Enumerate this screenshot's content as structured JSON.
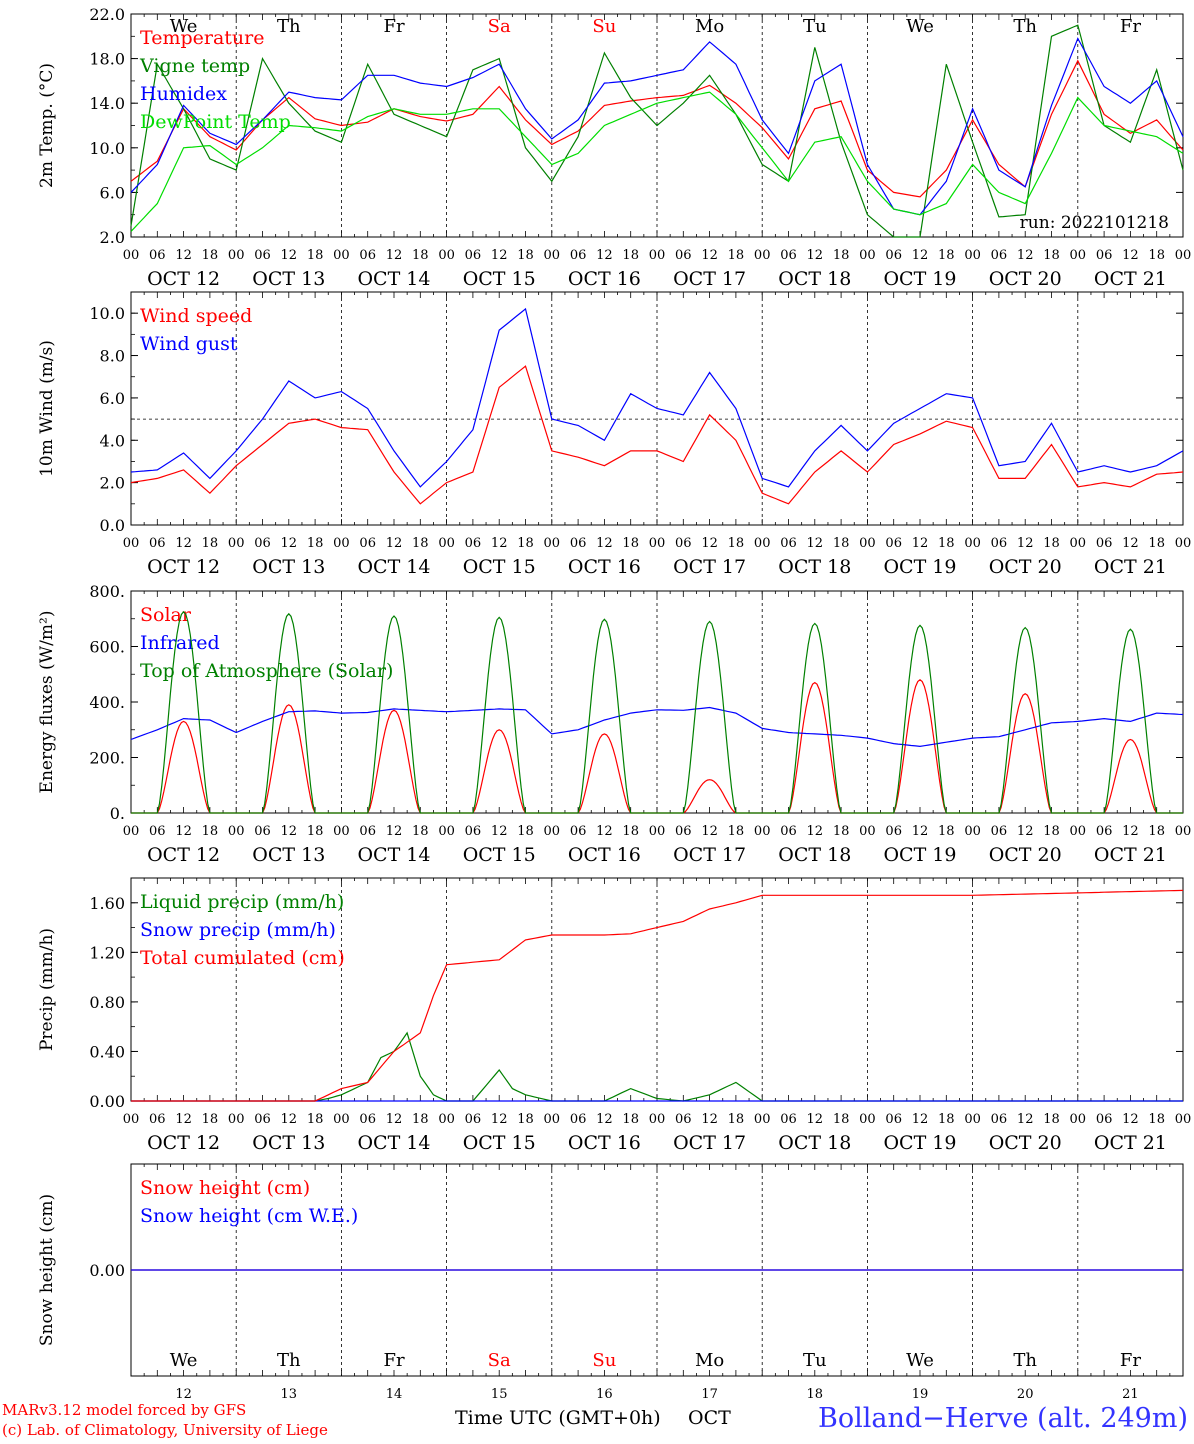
{
  "days": {
    "weekday_labels": [
      "We",
      "Th",
      "Fr",
      "Sa",
      "Su",
      "Mo",
      "Tu",
      "We",
      "Th",
      "Fr"
    ],
    "weekday_colors": [
      "#000000",
      "#000000",
      "#000000",
      "#ff0000",
      "#ff0000",
      "#000000",
      "#000000",
      "#000000",
      "#000000",
      "#000000"
    ],
    "date_labels": [
      "OCT 12",
      "OCT 13",
      "OCT 14",
      "OCT 15",
      "OCT 16",
      "OCT 17",
      "OCT 18",
      "OCT 19",
      "OCT 20",
      "OCT 21"
    ],
    "day_numbers": [
      "12",
      "13",
      "14",
      "15",
      "16",
      "17",
      "18",
      "19",
      "20",
      "21"
    ],
    "hour_ticks": [
      "00",
      "06",
      "12",
      "18"
    ],
    "final_hour_tick": "00"
  },
  "chart_data": [
    {
      "type": "line",
      "ylabel": "2m Temp. (°C)",
      "ylim": [
        2.0,
        22.0
      ],
      "yticks": [
        "2.0",
        "6.0",
        "10.0",
        "14.0",
        "18.0",
        "22.0"
      ],
      "ytick_values": [
        2,
        6,
        10,
        14,
        18,
        22
      ],
      "annotation": "run: 2022101218",
      "legend_placement": "top-left",
      "series": [
        {
          "name": "Temperature",
          "color": "#ff0000",
          "x_hours": [
            0,
            6,
            12,
            18,
            24,
            30,
            36,
            42,
            48,
            54,
            60,
            66,
            72,
            78,
            84,
            90,
            96,
            102,
            108,
            114,
            120,
            126,
            132,
            138,
            144,
            150,
            156,
            162,
            168,
            174,
            180,
            186,
            192,
            198,
            204,
            210,
            216,
            222,
            228,
            234,
            240
          ],
          "values": [
            7.0,
            8.8,
            13.5,
            11.0,
            9.8,
            12.5,
            14.5,
            12.6,
            12.0,
            12.3,
            13.5,
            12.8,
            12.4,
            13.0,
            15.5,
            12.5,
            10.3,
            11.5,
            13.8,
            14.2,
            14.5,
            14.7,
            15.6,
            14.0,
            11.8,
            9.0,
            13.5,
            14.2,
            8.0,
            6.0,
            5.6,
            8.0,
            12.5,
            8.5,
            6.5,
            13.0,
            17.8,
            13.0,
            11.3,
            12.5,
            9.8
          ]
        },
        {
          "name": "Vigne temp",
          "color": "#008000",
          "x_hours": [
            0,
            6,
            12,
            18,
            24,
            30,
            36,
            42,
            48,
            54,
            60,
            66,
            72,
            78,
            84,
            90,
            96,
            102,
            108,
            114,
            120,
            126,
            132,
            138,
            144,
            150,
            156,
            162,
            168,
            174,
            180,
            186,
            192,
            198,
            204,
            210,
            216,
            222,
            228,
            234,
            240
          ],
          "values": [
            3.0,
            17.5,
            13.5,
            9.0,
            8.0,
            18.0,
            14.0,
            11.5,
            10.5,
            17.5,
            13.0,
            12.0,
            11.0,
            17.0,
            18.0,
            10.0,
            7.0,
            11.0,
            18.5,
            14.5,
            12.0,
            14.0,
            16.5,
            13.0,
            8.5,
            7.0,
            19.0,
            10.5,
            4.0,
            2.0,
            2.0,
            17.5,
            10.5,
            3.8,
            4.0,
            20.0,
            21.0,
            12.0,
            10.5,
            17.0,
            8.0
          ]
        },
        {
          "name": "Humidex",
          "color": "#0000ff",
          "x_hours": [
            0,
            6,
            12,
            18,
            24,
            30,
            36,
            42,
            48,
            54,
            60,
            66,
            72,
            78,
            84,
            90,
            96,
            102,
            108,
            114,
            120,
            126,
            132,
            138,
            144,
            150,
            156,
            162,
            168,
            174,
            180,
            186,
            192,
            198,
            204,
            210,
            216,
            222,
            228,
            234,
            240
          ],
          "values": [
            6.0,
            8.5,
            13.8,
            11.3,
            10.3,
            12.5,
            15.0,
            14.5,
            14.3,
            16.5,
            16.5,
            15.8,
            15.5,
            16.3,
            17.5,
            13.5,
            10.8,
            12.5,
            15.8,
            16.0,
            16.5,
            17.0,
            19.5,
            17.5,
            12.5,
            9.5,
            16.0,
            17.5,
            8.5,
            4.5,
            4.0,
            7.0,
            13.5,
            8.0,
            6.5,
            13.8,
            19.8,
            15.5,
            14.0,
            16.0,
            11.0
          ]
        },
        {
          "name": "DewPoint Temp",
          "color": "#00dd00",
          "x_hours": [
            0,
            6,
            12,
            18,
            24,
            30,
            36,
            42,
            48,
            54,
            60,
            66,
            72,
            78,
            84,
            90,
            96,
            102,
            108,
            114,
            120,
            126,
            132,
            138,
            144,
            150,
            156,
            162,
            168,
            174,
            180,
            186,
            192,
            198,
            204,
            210,
            216,
            222,
            228,
            234,
            240
          ],
          "values": [
            2.5,
            5.0,
            10.0,
            10.2,
            8.5,
            10.0,
            12.0,
            11.8,
            11.5,
            12.8,
            13.5,
            13.0,
            13.0,
            13.5,
            13.5,
            11.0,
            8.5,
            9.5,
            12.0,
            13.0,
            14.0,
            14.5,
            15.0,
            13.0,
            10.0,
            7.0,
            10.5,
            11.0,
            7.0,
            4.5,
            4.0,
            5.0,
            8.5,
            6.0,
            5.0,
            9.5,
            14.5,
            12.0,
            11.5,
            11.0,
            9.5
          ]
        }
      ]
    },
    {
      "type": "line",
      "ylabel": "10m Wind (m/s)",
      "ylim": [
        0.0,
        11.0
      ],
      "yticks": [
        "0.0",
        "2.0",
        "4.0",
        "6.0",
        "8.0",
        "10.0"
      ],
      "ytick_values": [
        0,
        2,
        4,
        6,
        8,
        10
      ],
      "reference_line": 5.0,
      "legend_placement": "top-left",
      "series": [
        {
          "name": "Wind speed",
          "color": "#ff0000",
          "x_hours": [
            0,
            6,
            12,
            18,
            24,
            30,
            36,
            42,
            48,
            54,
            60,
            66,
            72,
            78,
            84,
            90,
            96,
            102,
            108,
            114,
            120,
            126,
            132,
            138,
            144,
            150,
            156,
            162,
            168,
            174,
            180,
            186,
            192,
            198,
            204,
            210,
            216,
            222,
            228,
            234,
            240
          ],
          "values": [
            2.0,
            2.2,
            2.6,
            1.5,
            2.8,
            3.8,
            4.8,
            5.0,
            4.6,
            4.5,
            2.5,
            1.0,
            2.0,
            2.5,
            6.5,
            7.5,
            3.5,
            3.2,
            2.8,
            3.5,
            3.5,
            3.0,
            5.2,
            4.0,
            1.5,
            1.0,
            2.5,
            3.5,
            2.5,
            3.8,
            4.3,
            4.9,
            4.6,
            2.2,
            2.2,
            3.8,
            1.8,
            2.0,
            1.8,
            2.4,
            2.5
          ]
        },
        {
          "name": "Wind gust",
          "color": "#0000ff",
          "x_hours": [
            0,
            6,
            12,
            18,
            24,
            30,
            36,
            42,
            48,
            54,
            60,
            66,
            72,
            78,
            84,
            90,
            96,
            102,
            108,
            114,
            120,
            126,
            132,
            138,
            144,
            150,
            156,
            162,
            168,
            174,
            180,
            186,
            192,
            198,
            204,
            210,
            216,
            222,
            228,
            234,
            240
          ],
          "values": [
            2.5,
            2.6,
            3.4,
            2.2,
            3.5,
            5.0,
            6.8,
            6.0,
            6.3,
            5.5,
            3.5,
            1.8,
            3.0,
            4.5,
            9.2,
            10.2,
            5.0,
            4.7,
            4.0,
            6.2,
            5.5,
            5.2,
            7.2,
            5.5,
            2.2,
            1.8,
            3.5,
            4.7,
            3.5,
            4.8,
            5.5,
            6.2,
            6.0,
            2.8,
            3.0,
            4.8,
            2.5,
            2.8,
            2.5,
            2.8,
            3.5
          ]
        }
      ]
    },
    {
      "type": "line",
      "ylabel": "Energy fluxes (W/m²)",
      "ylim": [
        0,
        800
      ],
      "yticks": [
        "0.",
        "200.",
        "400.",
        "600.",
        "800."
      ],
      "ytick_values": [
        0,
        200,
        400,
        600,
        800
      ],
      "legend_placement": "top-left",
      "series": [
        {
          "name": "Solar",
          "color": "#ff0000",
          "diurnal_peak_values": [
            330,
            390,
            370,
            300,
            285,
            120,
            470,
            480,
            430,
            265
          ]
        },
        {
          "name": "Infrared",
          "color": "#0000ff",
          "x_hours": [
            0,
            6,
            12,
            18,
            24,
            30,
            36,
            42,
            48,
            54,
            60,
            66,
            72,
            78,
            84,
            90,
            96,
            102,
            108,
            114,
            120,
            126,
            132,
            138,
            144,
            150,
            156,
            162,
            168,
            174,
            180,
            186,
            192,
            198,
            204,
            210,
            216,
            222,
            228,
            234,
            240
          ],
          "values": [
            265,
            300,
            340,
            335,
            290,
            330,
            365,
            368,
            360,
            362,
            375,
            370,
            365,
            370,
            375,
            372,
            285,
            300,
            335,
            360,
            372,
            370,
            380,
            360,
            305,
            290,
            285,
            280,
            270,
            250,
            240,
            255,
            270,
            275,
            300,
            325,
            330,
            340,
            330,
            360,
            355
          ]
        },
        {
          "name": "Top of Atmosphere (Solar)",
          "color": "#008000",
          "diurnal_peak_values": [
            725,
            718,
            710,
            705,
            698,
            690,
            683,
            676,
            668,
            662
          ]
        }
      ]
    },
    {
      "type": "line",
      "ylabel": "Precip (mm/h)",
      "ylim": [
        0.0,
        1.8
      ],
      "yticks": [
        "0.00",
        "0.40",
        "0.80",
        "1.20",
        "1.60"
      ],
      "ytick_values": [
        0.0,
        0.4,
        0.8,
        1.2,
        1.6
      ],
      "legend_placement": "top-left",
      "series": [
        {
          "name": "Liquid precip (mm/h)",
          "color": "#008000",
          "x_hours": [
            0,
            42,
            45,
            48,
            54,
            57,
            60,
            63,
            66,
            69,
            72,
            78,
            84,
            87,
            90,
            96,
            108,
            114,
            120,
            126,
            132,
            135,
            138,
            144,
            240
          ],
          "values": [
            0,
            0,
            0.02,
            0.05,
            0.15,
            0.35,
            0.4,
            0.55,
            0.2,
            0.05,
            0.0,
            0.0,
            0.25,
            0.1,
            0.05,
            0.0,
            0.0,
            0.1,
            0.02,
            0.0,
            0.05,
            0.1,
            0.15,
            0.0,
            0.0
          ]
        },
        {
          "name": "Snow precip (mm/h)",
          "color": "#0000ff",
          "x_hours": [
            0,
            240
          ],
          "values": [
            0.0,
            0.0
          ]
        },
        {
          "name": "Total cumulated (cm)",
          "color": "#ff0000",
          "x_hours": [
            0,
            42,
            48,
            54,
            60,
            66,
            69,
            72,
            78,
            84,
            90,
            96,
            108,
            114,
            120,
            126,
            132,
            138,
            144,
            192,
            240
          ],
          "values": [
            0.0,
            0.0,
            0.1,
            0.15,
            0.4,
            0.55,
            0.85,
            1.1,
            1.12,
            1.14,
            1.3,
            1.34,
            1.34,
            1.35,
            1.4,
            1.45,
            1.55,
            1.6,
            1.66,
            1.66,
            1.7
          ]
        }
      ]
    },
    {
      "type": "line",
      "ylabel": "Snow height (cm)",
      "ylim": [
        -1.0,
        1.0
      ],
      "yticks": [
        "0.00"
      ],
      "ytick_values": [
        0.0
      ],
      "legend_placement": "top-left",
      "series": [
        {
          "name": "Snow height (cm)",
          "color": "#ff0000",
          "x_hours": [
            0,
            240
          ],
          "values": [
            0.0,
            0.0
          ]
        },
        {
          "name": "Snow height (cm W.E.)",
          "color": "#0000ff",
          "x_hours": [
            0,
            240
          ],
          "values": [
            0.0,
            0.0
          ]
        }
      ]
    }
  ],
  "footer": {
    "model_line": "MARv3.12 model forced by GFS",
    "credit_line": "(c) Lab. of Climatology, University of Liege",
    "xaxis_label": "Time UTC (GMT+0h)",
    "month_label": "OCT",
    "station": "Bolland−Herve (alt. 249m)"
  }
}
